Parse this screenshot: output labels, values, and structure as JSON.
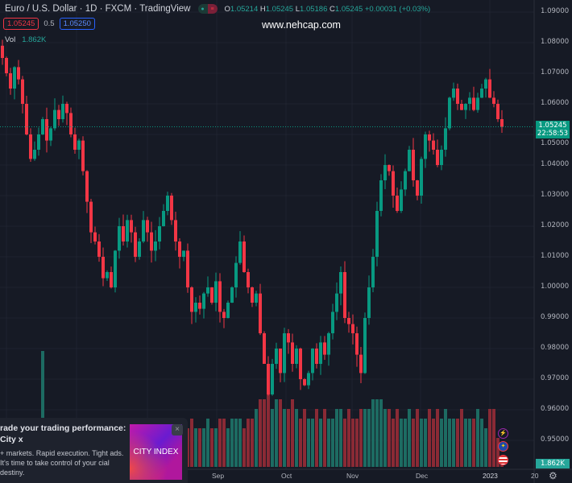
{
  "header": {
    "title": "Euro / U.S. Dollar · 1D · FXCM · TradingView",
    "ohlc": {
      "o_label": "O",
      "o": "1.05214",
      "h_label": "H",
      "h": "1.05245",
      "l_label": "L",
      "l": "1.05186",
      "c_label": "C",
      "c": "1.05245",
      "change": "+0.00031 (+0.03%)"
    },
    "bid": "1.05245",
    "spread": "0.5",
    "ask": "1.05250",
    "vol_label": "Vol",
    "vol": "1.862K"
  },
  "watermark": "www.nehcap.com",
  "price_axis": {
    "labels": [
      "1.09000",
      "1.08000",
      "1.07000",
      "1.06000",
      "1.05000",
      "1.04000",
      "1.03000",
      "1.02000",
      "1.01000",
      "1.00000",
      "0.99000",
      "0.98000",
      "0.97000",
      "0.96000",
      "0.95000"
    ],
    "last_price": "1.05245",
    "countdown": "22:58:53",
    "last_volume": "1.862K"
  },
  "time_axis": {
    "labels": [
      "Sep",
      "Oct",
      "Nov",
      "Dec",
      "2023",
      "20"
    ]
  },
  "ad": {
    "headline": "rade your trading performance: City x",
    "body": "+ markets. Rapid execution. Tight ads. It's time to take control of your cial destiny.",
    "image_text": "CITY INDEX",
    "close": "×"
  },
  "colors": {
    "up": "#089981",
    "down": "#f23645",
    "bg": "#161a25"
  },
  "chart_data": {
    "type": "candlestick",
    "symbol": "EURUSD",
    "ylim": [
      0.945,
      1.092
    ],
    "closes": [
      1.075,
      1.07,
      1.065,
      1.072,
      1.068,
      1.06,
      1.05,
      1.042,
      1.045,
      1.05,
      1.055,
      1.048,
      1.052,
      1.058,
      1.055,
      1.06,
      1.057,
      1.05,
      1.045,
      1.048,
      1.038,
      1.028,
      1.018,
      1.015,
      1.01,
      1.003,
      1.005,
      1.0,
      1.012,
      1.02,
      1.015,
      1.022,
      1.018,
      1.01,
      1.015,
      1.022,
      1.018,
      1.012,
      1.015,
      1.02,
      1.025,
      1.03,
      1.022,
      1.015,
      1.01,
      1.012,
      1.0,
      0.992,
      0.995,
      0.993,
      0.998,
      1.0,
      0.995,
      1.002,
      0.992,
      0.99,
      0.995,
      1.0,
      1.008,
      1.015,
      1.005,
      1.0,
      0.995,
      0.998,
      0.985,
      0.975,
      0.965,
      0.975,
      0.98,
      0.972,
      0.985,
      0.982,
      0.975,
      0.98,
      0.97,
      0.968,
      0.972,
      0.98,
      0.975,
      0.982,
      0.978,
      0.985,
      0.992,
      0.998,
      1.005,
      0.99,
      0.988,
      0.985,
      0.978,
      0.972,
      0.99,
      1.0,
      1.01,
      1.025,
      1.035,
      1.04,
      1.038,
      1.03,
      1.025,
      1.032,
      1.038,
      1.045,
      1.035,
      1.03,
      1.042,
      1.05,
      1.048,
      1.045,
      1.04,
      1.045,
      1.052,
      1.062,
      1.065,
      1.06,
      1.058,
      1.06,
      1.062,
      1.058,
      1.062,
      1.065,
      1.068,
      1.062,
      1.06,
      1.055,
      1.0525
    ],
    "volumes": [
      3,
      3,
      4,
      3,
      3,
      4,
      4,
      3,
      3,
      4,
      12,
      3,
      3,
      4,
      3,
      3,
      3,
      4,
      3,
      3,
      4,
      3,
      4,
      3,
      3,
      4,
      3,
      3,
      4,
      3,
      3,
      4,
      3,
      3,
      3,
      4,
      3,
      3,
      4,
      3,
      4,
      3,
      3,
      4,
      4,
      3,
      4,
      5,
      4,
      4,
      4,
      5,
      4,
      4,
      5,
      5,
      4,
      5,
      5,
      5,
      4,
      5,
      5,
      6,
      7,
      7,
      8,
      6,
      7,
      7,
      6,
      6,
      7,
      6,
      5,
      6,
      5,
      5,
      6,
      5,
      6,
      5,
      5,
      6,
      6,
      5,
      6,
      5,
      5,
      6,
      6,
      6,
      7,
      7,
      7,
      6,
      6,
      5,
      6,
      5,
      5,
      6,
      5,
      6,
      5,
      5,
      6,
      5,
      6,
      5,
      6,
      5,
      5,
      5,
      6,
      5,
      5,
      5,
      6,
      5,
      4,
      6,
      6,
      3,
      1
    ]
  }
}
